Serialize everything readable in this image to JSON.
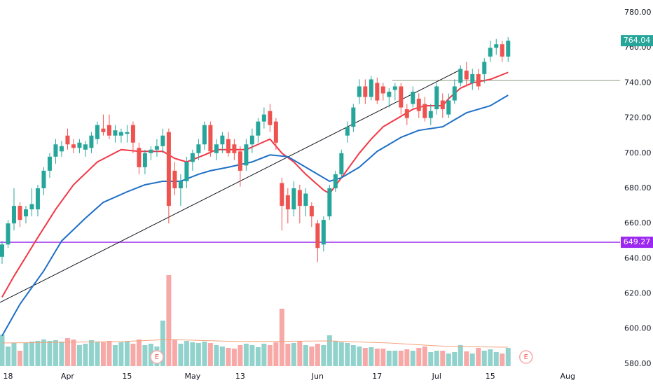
{
  "chart_data": {
    "type": "candlestick",
    "up_color": "#26a69a",
    "down_color": "#ef5350",
    "open": [
      641,
      648,
      660,
      670,
      664,
      668,
      668,
      680,
      690,
      698,
      701,
      710,
      705,
      703,
      702,
      703,
      708,
      714,
      716,
      710,
      710,
      711,
      716,
      703,
      692,
      700,
      702,
      704,
      712,
      690,
      680,
      684,
      695,
      700,
      705,
      716,
      700,
      705,
      708,
      705,
      701,
      693,
      705,
      710,
      718,
      724,
      718,
      683,
      676,
      668,
      679,
      670,
      670,
      660,
      648,
      664,
      680,
      688,
      710,
      715,
      732,
      738,
      732,
      740,
      738,
      732,
      736,
      738,
      725,
      728,
      731,
      728,
      720,
      725,
      730,
      722,
      730,
      740,
      747,
      740,
      745,
      745,
      755,
      760,
      762,
      755
    ],
    "high": [
      650,
      662,
      680,
      672,
      670,
      680,
      682,
      692,
      700,
      708,
      707,
      714,
      708,
      708,
      707,
      712,
      718,
      722,
      722,
      716,
      714,
      716,
      718,
      706,
      702,
      704,
      708,
      714,
      714,
      695,
      688,
      698,
      702,
      708,
      718,
      718,
      708,
      712,
      712,
      708,
      704,
      708,
      714,
      720,
      726,
      728,
      720,
      686,
      680,
      684,
      682,
      680,
      672,
      662,
      664,
      682,
      690,
      702,
      718,
      728,
      742,
      742,
      744,
      743,
      740,
      737,
      740,
      740,
      728,
      738,
      734,
      732,
      728,
      740,
      734,
      734,
      742,
      750,
      752,
      748,
      748,
      754,
      764,
      765,
      764,
      766
    ],
    "low": [
      637,
      646,
      656,
      658,
      660,
      664,
      664,
      676,
      686,
      694,
      698,
      702,
      700,
      700,
      698,
      700,
      705,
      710,
      708,
      706,
      706,
      706,
      700,
      688,
      688,
      696,
      698,
      700,
      660,
      676,
      670,
      680,
      690,
      696,
      702,
      698,
      696,
      700,
      698,
      696,
      681,
      690,
      700,
      706,
      714,
      712,
      702,
      656,
      660,
      664,
      660,
      664,
      658,
      638,
      644,
      662,
      678,
      686,
      706,
      712,
      728,
      728,
      730,
      728,
      730,
      726,
      730,
      722,
      716,
      726,
      720,
      718,
      716,
      722,
      720,
      720,
      728,
      738,
      738,
      736,
      736,
      740,
      752,
      756,
      752,
      752
    ],
    "close": [
      648,
      660,
      670,
      662,
      668,
      671,
      680,
      690,
      698,
      705,
      704,
      705,
      703,
      706,
      705,
      710,
      716,
      712,
      710,
      713,
      712,
      712,
      706,
      692,
      700,
      702,
      704,
      710,
      670,
      680,
      684,
      695,
      700,
      705,
      716,
      701,
      705,
      710,
      700,
      700,
      690,
      705,
      710,
      718,
      722,
      716,
      706,
      670,
      668,
      680,
      670,
      677,
      664,
      646,
      662,
      680,
      688,
      700,
      715,
      726,
      738,
      732,
      742,
      730,
      734,
      735,
      738,
      726,
      720,
      735,
      724,
      720,
      724,
      738,
      725,
      730,
      738,
      748,
      742,
      745,
      738,
      752,
      760,
      762,
      755,
      764.04
    ],
    "volume": [
      45,
      28,
      33,
      22,
      33,
      35,
      36,
      38,
      36,
      37,
      35,
      40,
      38,
      30,
      32,
      37,
      35,
      34,
      36,
      30,
      34,
      35,
      32,
      38,
      30,
      32,
      28,
      65,
      130,
      38,
      32,
      36,
      34,
      33,
      35,
      33,
      30,
      28,
      26,
      25,
      30,
      32,
      30,
      27,
      32,
      30,
      34,
      82,
      32,
      33,
      36,
      30,
      28,
      32,
      30,
      44,
      36,
      34,
      33,
      30,
      28,
      26,
      27,
      25,
      25,
      22,
      22,
      22,
      24,
      22,
      26,
      28,
      20,
      22,
      22,
      18,
      20,
      30,
      21,
      18,
      26,
      22,
      24,
      20,
      18,
      26
    ],
    "volume_ma": {
      "color": "#f4a27b",
      "x": [
        0,
        20,
        28,
        40,
        55,
        65,
        75,
        85
      ],
      "values": [
        33,
        35,
        38,
        35,
        36,
        33,
        28,
        27
      ]
    },
    "moving_averages": [
      {
        "color": "#f23645",
        "x": [
          0,
          2,
          6,
          9,
          12,
          16,
          20,
          23,
          27,
          29,
          31,
          34,
          36,
          39,
          41,
          43,
          45,
          47,
          49,
          51,
          54,
          55,
          57,
          60,
          62,
          64,
          67,
          69,
          71,
          74,
          75,
          77,
          79,
          82,
          85
        ],
        "values": [
          618,
          630,
          652,
          668,
          682,
          695,
          702,
          701,
          701,
          697,
          695,
          699,
          702,
          702,
          702,
          705,
          708,
          700,
          695,
          688,
          679,
          677,
          686,
          700,
          708,
          715,
          721,
          725,
          727,
          727,
          731,
          737,
          740,
          742,
          746
        ]
      },
      {
        "color": "#1e6fc7",
        "x": [
          0,
          3,
          7,
          10,
          14,
          17,
          21,
          24,
          27,
          30,
          33,
          35,
          38,
          42,
          45,
          48,
          51,
          55,
          57,
          60,
          63,
          67,
          70,
          74,
          76,
          78,
          82,
          85
        ],
        "values": [
          596,
          614,
          633,
          650,
          663,
          672,
          678,
          682,
          684,
          684,
          688,
          690,
          692,
          695,
          699,
          698,
          692,
          684,
          686,
          692,
          701,
          709,
          713,
          715,
          719,
          723,
          727,
          733
        ]
      }
    ],
    "trendline": {
      "color": "#131722",
      "x": [
        -0.35,
        76.7
      ],
      "values": [
        615,
        747
      ]
    },
    "horizontal_lines": [
      {
        "value": 649.27,
        "color": "#9c27f0",
        "x_start": -0.35,
        "tag": true
      },
      {
        "value": 741.5,
        "color": "#8a9a7b",
        "x_start": 65.5,
        "tag": false
      }
    ],
    "last_price": 764.04,
    "events": [
      {
        "x": 26,
        "label": "E"
      },
      {
        "x": 88,
        "label": "E"
      }
    ],
    "xlim": [
      -0.35,
      103.8
    ],
    "xticks": [
      {
        "value": 1,
        "label": "18"
      },
      {
        "value": 11,
        "label": "Apr"
      },
      {
        "value": 21,
        "label": "15"
      },
      {
        "value": 32,
        "label": "May"
      },
      {
        "value": 40,
        "label": "13"
      },
      {
        "value": 53,
        "label": "Jun"
      },
      {
        "value": 63,
        "label": "17"
      },
      {
        "value": 73,
        "label": "Jul"
      },
      {
        "value": 82,
        "label": "15"
      },
      {
        "value": 95,
        "label": "Aug"
      }
    ],
    "ylim": [
      568,
      787.2
    ],
    "yticks": [
      {
        "value": 580,
        "label": "580.00"
      },
      {
        "value": 600,
        "label": "600.00"
      },
      {
        "value": 620,
        "label": "620.00"
      },
      {
        "value": 640,
        "label": "640.00"
      },
      {
        "value": 660,
        "label": "660.00"
      },
      {
        "value": 680,
        "label": "680.00"
      },
      {
        "value": 700,
        "label": "700.00"
      },
      {
        "value": 720,
        "label": "720.00"
      },
      {
        "value": 740,
        "label": "740.00"
      },
      {
        "value": 760,
        "label": "760.00"
      },
      {
        "value": 780,
        "label": "780.00"
      }
    ]
  }
}
